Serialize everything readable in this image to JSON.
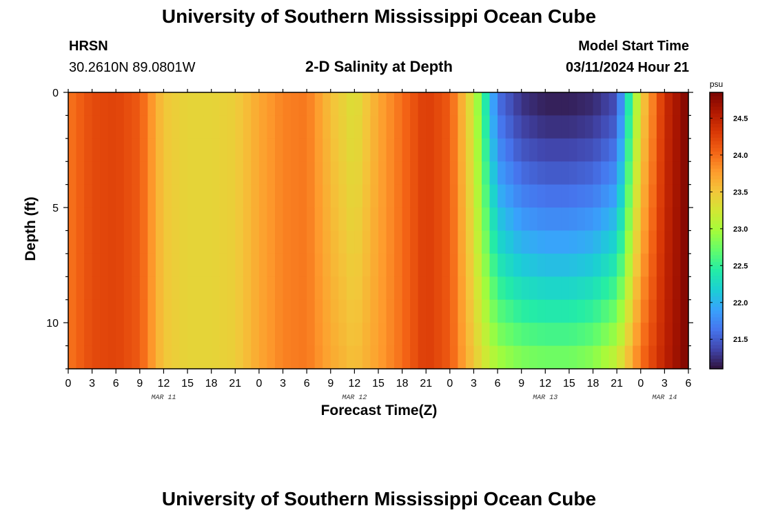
{
  "page": {
    "title_top": "University of Southern Mississippi Ocean Cube",
    "title_bottom": "University of Southern Mississippi Ocean Cube",
    "station_name": "HRSN",
    "station_coords": "30.2610N  89.0801W",
    "plot_title": "2-D Salinity at Depth",
    "model_start_label": "Model Start Time",
    "model_start_value": "03/11/2024 Hour 21"
  },
  "chart_data": {
    "type": "heatmap",
    "title": "2-D Salinity at Depth",
    "xlabel": "Forecast Time(Z)",
    "ylabel": "Depth (ft)",
    "x_tick_labels": [
      "0",
      "3",
      "6",
      "9",
      "12",
      "15",
      "18",
      "21",
      "0",
      "3",
      "6",
      "9",
      "12",
      "15",
      "18",
      "21",
      "0",
      "3",
      "6",
      "9",
      "12",
      "15",
      "18",
      "21",
      "0",
      "3",
      "6"
    ],
    "x_hours_range": [
      0,
      78
    ],
    "date_labels": [
      {
        "label": "MAR 11",
        "hour": 12
      },
      {
        "label": "MAR 12",
        "hour": 36
      },
      {
        "label": "MAR 13",
        "hour": 60
      },
      {
        "label": "MAR 14",
        "hour": 75
      }
    ],
    "y_tick_labels": [
      "0",
      "5",
      "10"
    ],
    "y_tick_values": [
      0,
      5,
      10
    ],
    "ylim": [
      0,
      12
    ],
    "y_inverted": true,
    "colorbar": {
      "unit": "psu",
      "range": [
        21.1,
        24.85
      ],
      "tick_labels": [
        "24.5",
        "24.0",
        "23.5",
        "23.0",
        "22.5",
        "22.0",
        "21.5"
      ],
      "tick_values": [
        24.5,
        24.0,
        23.5,
        23.0,
        22.5,
        22.0,
        21.5
      ],
      "colormap": [
        "#30123b",
        "#4145ab",
        "#4675ed",
        "#39a2fc",
        "#1bcfd4",
        "#24eca6",
        "#61fc6c",
        "#a4fc3b",
        "#d1e834",
        "#f3c63a",
        "#fe9b2d",
        "#f36315",
        "#d93806",
        "#b11901",
        "#7a0402"
      ]
    },
    "salinity_by_hour": {
      "hours": [
        0,
        3,
        6,
        9,
        12,
        15,
        18,
        21,
        24,
        27,
        30,
        33,
        36,
        39,
        42,
        45,
        48,
        51,
        54,
        57,
        60,
        63,
        66,
        69,
        72,
        75,
        78
      ],
      "surface": [
        23.95,
        24.2,
        24.25,
        24.1,
        23.5,
        23.4,
        23.4,
        23.45,
        23.7,
        23.9,
        23.95,
        23.55,
        23.3,
        23.7,
        24.0,
        24.3,
        24.1,
        23.2,
        21.6,
        21.25,
        21.15,
        21.15,
        21.2,
        21.4,
        23.4,
        24.4,
        24.85
      ],
      "bottom": [
        23.95,
        24.2,
        24.25,
        24.1,
        23.5,
        23.4,
        23.4,
        23.45,
        23.7,
        23.9,
        23.95,
        23.7,
        23.55,
        23.75,
        24.0,
        24.3,
        24.1,
        23.5,
        23.05,
        22.9,
        22.85,
        22.85,
        22.95,
        23.25,
        24.0,
        24.5,
        24.85
      ]
    }
  }
}
